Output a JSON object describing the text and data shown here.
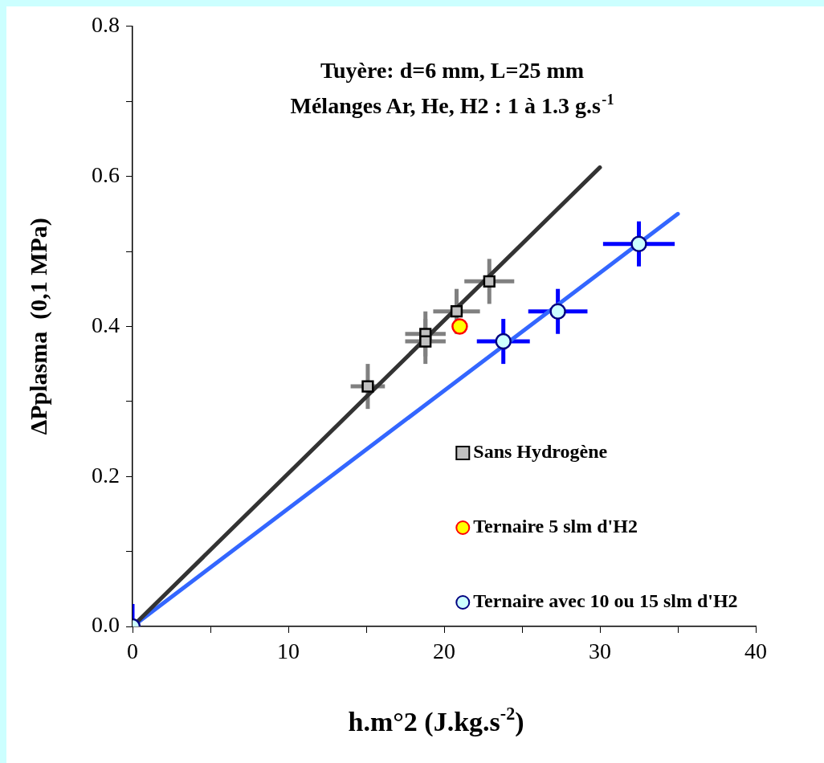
{
  "chart_data": {
    "type": "scatter",
    "title": "Tuyère: d=6 mm, L=25 mm",
    "subtitle": "Mélanges Ar, He, H2 : 1 à 1.3 g.s$^{-1}$",
    "xlabel": "h.m°2 (J.kg.s$^{-2}$)",
    "ylabel": "ΔPplasma  (0,1 MPa)",
    "xlim": [
      0,
      40
    ],
    "xticks": [
      0,
      {
        "value": 5,
        "label": null
      },
      10,
      {
        "value": 15,
        "label": null
      },
      20,
      {
        "value": 25,
        "label": null
      },
      30,
      {
        "value": 35,
        "label": null
      },
      40
    ],
    "ylim": [
      0,
      0.8
    ],
    "yticks": [
      {
        "value": 0,
        "label": "0.0"
      },
      {
        "value": 0.1,
        "label": null
      },
      0.2,
      {
        "value": 0.3,
        "label": null
      },
      0.4,
      {
        "value": 0.5,
        "label": null
      },
      0.6,
      {
        "value": 0.7,
        "label": null
      },
      0.8
    ],
    "grid": false,
    "legend": "bottom right",
    "series": [
      {
        "type": "line",
        "color": "#333333",
        "x": [
          0,
          30
        ],
        "values": [
          0,
          0.612
        ],
        "marker": "none"
      },
      {
        "type": "line",
        "color": "#3366ff",
        "x": [
          0,
          35
        ],
        "values": [
          0,
          0.55
        ],
        "marker": "none"
      },
      {
        "name": "Sans Hydrogène",
        "color": "#c0c0c0",
        "marker": "square",
        "x": [
          15.1,
          18.8,
          18.8,
          20.8,
          22.9
        ],
        "values": [
          0.32,
          0.39,
          0.38,
          0.42,
          0.46
        ],
        "errors": [
          0.03,
          0.03,
          0.03,
          0.03,
          0.03
        ],
        "xerrors": [
          1.1,
          1.3,
          1.3,
          1.5,
          1.6
        ]
      },
      {
        "name": "Ternaire 5 slm d'H2",
        "color": "#ffff00",
        "marker": "circle",
        "x": [
          21.0
        ],
        "values": [
          0.4
        ]
      },
      {
        "name": "Ternaire avec 10 ou 15 slm d'H2",
        "color": "#ccffff",
        "marker": "circle",
        "x": [
          0,
          23.8,
          27.3,
          32.5
        ],
        "values": [
          0,
          0.38,
          0.42,
          0.51
        ],
        "errors": [
          [
            0,
            0.03
          ],
          0.03,
          0.03,
          0.03
        ],
        "xerrors": [
          null,
          1.7,
          1.9,
          2.3
        ]
      }
    ]
  }
}
